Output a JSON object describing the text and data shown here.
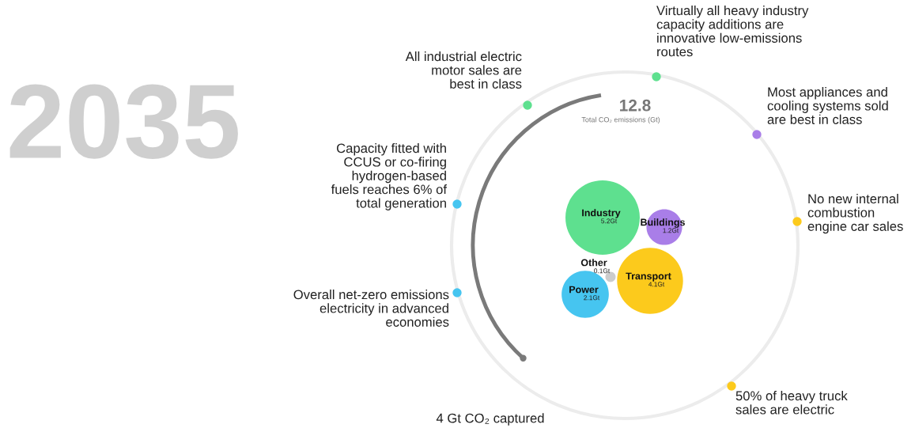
{
  "chart_data": {
    "type": "other",
    "title": "2035",
    "categories": [
      "Industry",
      "Buildings",
      "Transport",
      "Other",
      "Power"
    ],
    "values": [
      5.2,
      1.2,
      4.1,
      0.1,
      2.1
    ],
    "value_labels": [
      "5.2Gt",
      "1.2Gt",
      "4.1Gt",
      "0.1Gt",
      "2.1Gt"
    ],
    "colors": [
      "#5ee08f",
      "#a97ee8",
      "#fcca1c",
      "#cccccc",
      "#46c5f0"
    ],
    "annotations": [
      "12.8",
      "Total CO₂ emissions (Gt)",
      "All industrial electric\nmotor sales are\nbest in class",
      "Virtually all heavy industry\ncapacity additions are\ninnovative low-emissions\nroutes",
      "Most appliances and\ncooling systems sold\nare best in class",
      "No new internal\ncombustion\nengine car sales",
      "50% of heavy truck\nsales are electric",
      "4 Gt CO₂ captured",
      "Overall net-zero emissions\nelectricity in advanced\neconomies",
      "Capacity fitted with\nCCUS or co-firing\nhydrogen-based\nfuels reaches 6% of\ntotal generation"
    ]
  }
}
